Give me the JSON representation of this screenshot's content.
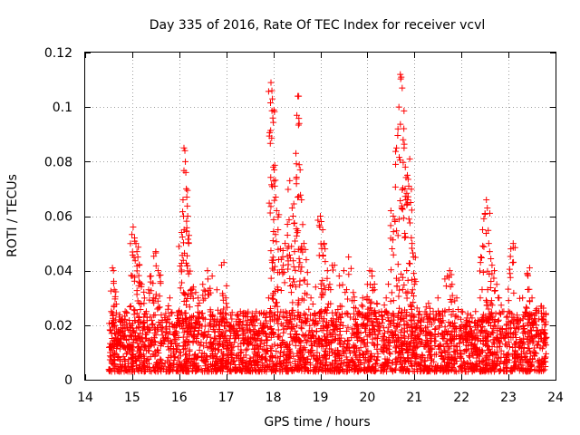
{
  "chart_data": {
    "type": "scatter",
    "title": "Day 335 of 2016, Rate Of TEC Index for receiver vcvl",
    "xlabel": "GPS time / hours",
    "ylabel": "ROTI / TECUs",
    "xlim": [
      14,
      24
    ],
    "ylim": [
      0,
      0.12
    ],
    "x_ticks": [
      14,
      15,
      16,
      17,
      18,
      19,
      20,
      21,
      22,
      23,
      24
    ],
    "x_tick_labels": [
      "14",
      "15",
      "16",
      "17",
      "18",
      "19",
      "20",
      "21",
      "22",
      "23",
      "24"
    ],
    "y_ticks": [
      0,
      0.02,
      0.04,
      0.06,
      0.08,
      0.1,
      0.12
    ],
    "y_tick_labels": [
      "0",
      "0.02",
      "0.04",
      "0.06",
      "0.08",
      "0.1",
      "0.12"
    ],
    "grid": true,
    "marker": "+",
    "series": [
      {
        "name": "ROTI",
        "color": "#ff0000",
        "points": [
          [
            14.55,
            0.012
          ],
          [
            14.58,
            0.041
          ],
          [
            14.6,
            0.04
          ],
          [
            14.62,
            0.033
          ],
          [
            14.65,
            0.022
          ],
          [
            14.7,
            0.015
          ],
          [
            14.75,
            0.018
          ],
          [
            14.8,
            0.02
          ],
          [
            14.85,
            0.025
          ],
          [
            14.9,
            0.01
          ],
          [
            14.95,
            0.003
          ],
          [
            14.98,
            0.008
          ],
          [
            15.0,
            0.038
          ],
          [
            15.02,
            0.056
          ],
          [
            15.05,
            0.052
          ],
          [
            15.08,
            0.05
          ],
          [
            15.1,
            0.047
          ],
          [
            15.12,
            0.045
          ],
          [
            15.15,
            0.042
          ],
          [
            15.2,
            0.035
          ],
          [
            15.25,
            0.028
          ],
          [
            15.3,
            0.025
          ],
          [
            15.35,
            0.033
          ],
          [
            15.4,
            0.038
          ],
          [
            15.45,
            0.03
          ],
          [
            15.5,
            0.047
          ],
          [
            15.55,
            0.04
          ],
          [
            15.6,
            0.036
          ],
          [
            15.7,
            0.022
          ],
          [
            15.8,
            0.03
          ],
          [
            15.9,
            0.02
          ],
          [
            16.0,
            0.025
          ],
          [
            16.05,
            0.054
          ],
          [
            16.08,
            0.066
          ],
          [
            16.1,
            0.085
          ],
          [
            16.12,
            0.084
          ],
          [
            16.13,
            0.08
          ],
          [
            16.14,
            0.076
          ],
          [
            16.15,
            0.07
          ],
          [
            16.16,
            0.067
          ],
          [
            16.18,
            0.06
          ],
          [
            16.2,
            0.05
          ],
          [
            16.25,
            0.033
          ],
          [
            16.3,
            0.034
          ],
          [
            16.35,
            0.032
          ],
          [
            16.4,
            0.03
          ],
          [
            16.5,
            0.035
          ],
          [
            16.6,
            0.04
          ],
          [
            16.7,
            0.038
          ],
          [
            16.8,
            0.033
          ],
          [
            16.9,
            0.042
          ],
          [
            16.95,
            0.043
          ],
          [
            17.0,
            0.028
          ],
          [
            17.1,
            0.02
          ],
          [
            17.2,
            0.018
          ],
          [
            17.3,
            0.025
          ],
          [
            17.4,
            0.015
          ],
          [
            17.5,
            0.02
          ],
          [
            17.6,
            0.022
          ],
          [
            17.7,
            0.018
          ],
          [
            17.8,
            0.02
          ],
          [
            17.9,
            0.03
          ],
          [
            17.95,
            0.109
          ],
          [
            17.97,
            0.106
          ],
          [
            17.98,
            0.103
          ],
          [
            17.99,
            0.096
          ],
          [
            18.0,
            0.078
          ],
          [
            18.02,
            0.077
          ],
          [
            18.03,
            0.071
          ],
          [
            18.05,
            0.067
          ],
          [
            18.07,
            0.062
          ],
          [
            18.1,
            0.055
          ],
          [
            18.15,
            0.048
          ],
          [
            18.2,
            0.045
          ],
          [
            18.25,
            0.05
          ],
          [
            18.3,
            0.057
          ],
          [
            18.35,
            0.073
          ],
          [
            18.4,
            0.063
          ],
          [
            18.42,
            0.06
          ],
          [
            18.45,
            0.047
          ],
          [
            18.48,
            0.083
          ],
          [
            18.5,
            0.097
          ],
          [
            18.52,
            0.104
          ],
          [
            18.54,
            0.104
          ],
          [
            18.55,
            0.094
          ],
          [
            18.57,
            0.077
          ],
          [
            18.6,
            0.066
          ],
          [
            18.65,
            0.05
          ],
          [
            18.7,
            0.044
          ],
          [
            18.8,
            0.03
          ],
          [
            18.9,
            0.034
          ],
          [
            19.0,
            0.06
          ],
          [
            19.02,
            0.058
          ],
          [
            19.05,
            0.055
          ],
          [
            19.08,
            0.05
          ],
          [
            19.1,
            0.048
          ],
          [
            19.15,
            0.04
          ],
          [
            19.2,
            0.035
          ],
          [
            19.3,
            0.042
          ],
          [
            19.4,
            0.038
          ],
          [
            19.5,
            0.04
          ],
          [
            19.6,
            0.045
          ],
          [
            19.7,
            0.032
          ],
          [
            19.8,
            0.025
          ],
          [
            19.9,
            0.03
          ],
          [
            20.0,
            0.035
          ],
          [
            20.05,
            0.04
          ],
          [
            20.1,
            0.038
          ],
          [
            20.15,
            0.033
          ],
          [
            20.2,
            0.028
          ],
          [
            20.3,
            0.025
          ],
          [
            20.4,
            0.03
          ],
          [
            20.5,
            0.062
          ],
          [
            20.55,
            0.06
          ],
          [
            20.6,
            0.079
          ],
          [
            20.62,
            0.085
          ],
          [
            20.65,
            0.092
          ],
          [
            20.67,
            0.1
          ],
          [
            20.7,
            0.112
          ],
          [
            20.72,
            0.111
          ],
          [
            20.74,
            0.107
          ],
          [
            20.76,
            0.088
          ],
          [
            20.78,
            0.085
          ],
          [
            20.8,
            0.07
          ],
          [
            20.82,
            0.066
          ],
          [
            20.85,
            0.075
          ],
          [
            20.88,
            0.071
          ],
          [
            20.9,
            0.081
          ],
          [
            20.92,
            0.065
          ],
          [
            20.95,
            0.05
          ],
          [
            20.98,
            0.045
          ],
          [
            21.0,
            0.035
          ],
          [
            21.1,
            0.025
          ],
          [
            21.2,
            0.022
          ],
          [
            21.3,
            0.028
          ],
          [
            21.4,
            0.025
          ],
          [
            21.5,
            0.03
          ],
          [
            21.6,
            0.025
          ],
          [
            21.7,
            0.038
          ],
          [
            21.75,
            0.04
          ],
          [
            21.8,
            0.035
          ],
          [
            21.9,
            0.03
          ],
          [
            22.0,
            0.025
          ],
          [
            22.1,
            0.02
          ],
          [
            22.2,
            0.018
          ],
          [
            22.3,
            0.025
          ],
          [
            22.4,
            0.03
          ],
          [
            22.45,
            0.055
          ],
          [
            22.5,
            0.061
          ],
          [
            22.53,
            0.066
          ],
          [
            22.55,
            0.063
          ],
          [
            22.58,
            0.05
          ],
          [
            22.6,
            0.047
          ],
          [
            22.65,
            0.042
          ],
          [
            22.7,
            0.04
          ],
          [
            22.75,
            0.035
          ],
          [
            22.8,
            0.03
          ],
          [
            22.9,
            0.025
          ],
          [
            23.0,
            0.025
          ],
          [
            23.05,
            0.048
          ],
          [
            23.1,
            0.05
          ],
          [
            23.2,
            0.022
          ],
          [
            23.3,
            0.03
          ],
          [
            23.4,
            0.039
          ],
          [
            23.45,
            0.041
          ],
          [
            23.5,
            0.03
          ],
          [
            23.6,
            0.026
          ],
          [
            23.7,
            0.027
          ],
          [
            23.75,
            0.024
          ],
          [
            23.78,
            0.015
          ]
        ],
        "background_band": {
          "x_start": 14.5,
          "x_end": 23.8,
          "y_low": 0.003,
          "y_high": 0.025,
          "approx_points": 2600
        }
      }
    ]
  }
}
